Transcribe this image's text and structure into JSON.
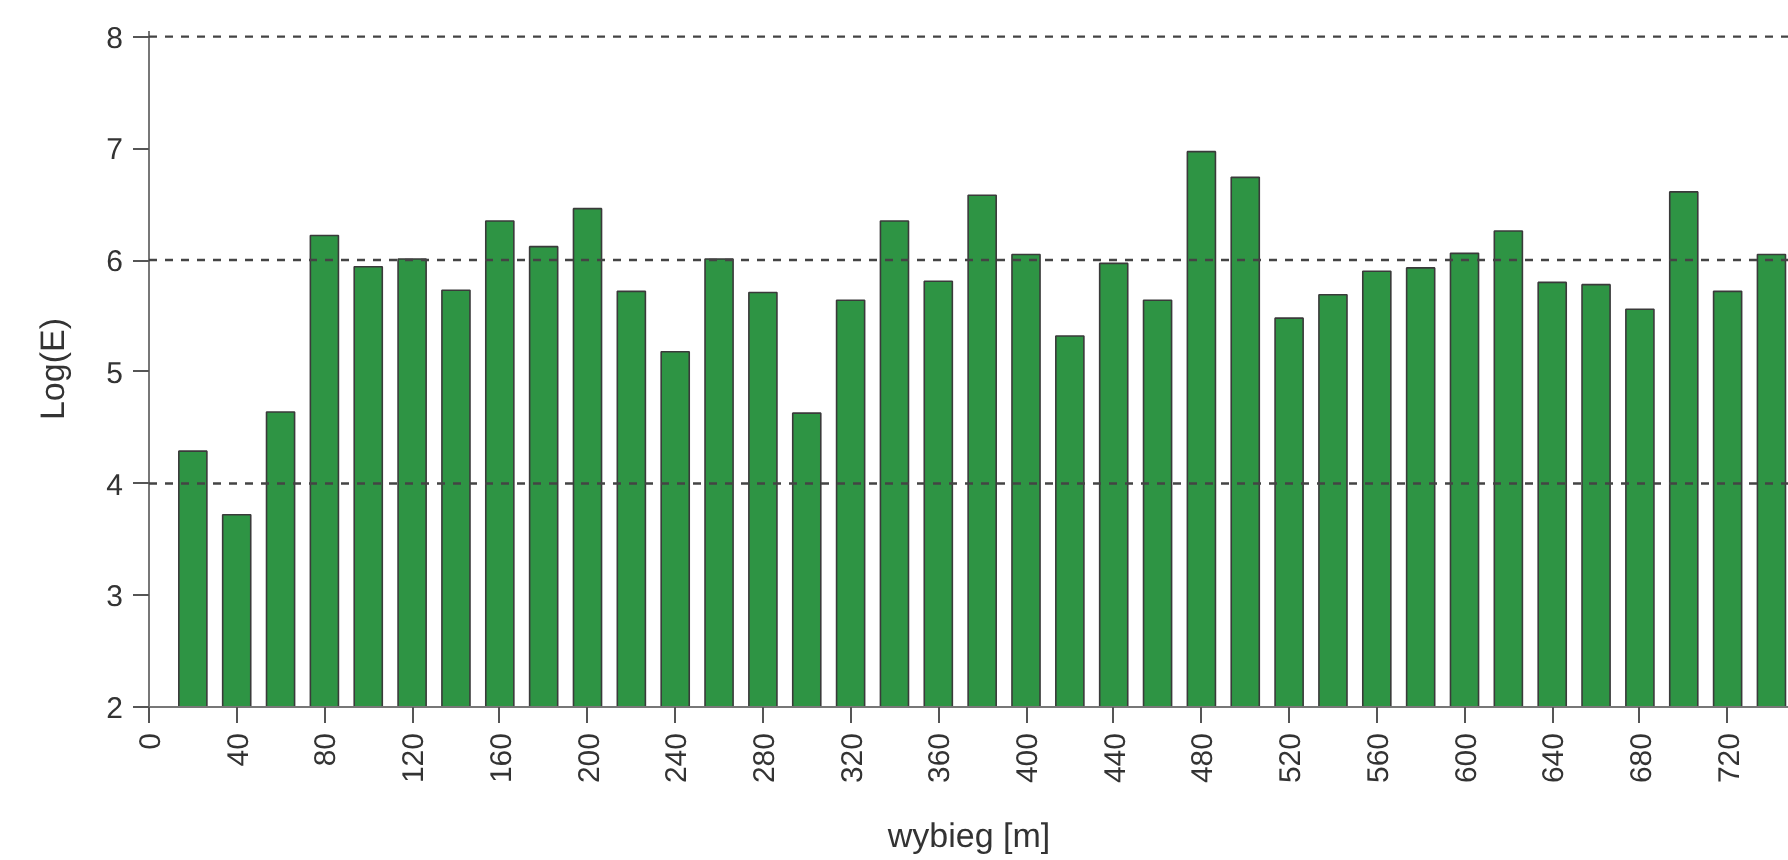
{
  "chart_data": {
    "type": "bar",
    "xlabel": "wybieg [m]",
    "ylabel": "Log(E)",
    "x": [
      20,
      40,
      60,
      80,
      100,
      120,
      140,
      160,
      180,
      200,
      220,
      240,
      260,
      280,
      300,
      320,
      340,
      360,
      380,
      400,
      420,
      440,
      460,
      480,
      500,
      520,
      540,
      560,
      580,
      600,
      620,
      640,
      660,
      680,
      700,
      720,
      740
    ],
    "values": [
      4.29,
      3.72,
      4.64,
      6.22,
      5.94,
      6.01,
      5.73,
      6.35,
      6.12,
      6.46,
      5.72,
      5.18,
      6.01,
      5.71,
      4.63,
      5.64,
      6.35,
      5.81,
      6.58,
      6.05,
      5.32,
      5.97,
      5.64,
      6.97,
      6.74,
      5.48,
      5.69,
      5.9,
      5.93,
      6.06,
      6.26,
      5.8,
      5.78,
      5.56,
      6.61,
      5.72,
      6.05
    ],
    "color": "#2e9444",
    "xlim": [
      0,
      748
    ],
    "xticks": [
      0,
      40,
      80,
      120,
      160,
      200,
      240,
      280,
      320,
      360,
      400,
      440,
      480,
      520,
      560,
      600,
      640,
      680,
      720
    ],
    "ylim": [
      2,
      8.05
    ],
    "yticks": [
      2,
      3,
      4,
      5,
      6,
      7,
      8
    ],
    "ref_lines": [
      {
        "axis": "y",
        "value": 4,
        "line_style": "dashed"
      },
      {
        "axis": "y",
        "value": 6,
        "line_style": "dashed"
      },
      {
        "axis": "y",
        "value": 8,
        "line_style": "dashed"
      }
    ]
  }
}
